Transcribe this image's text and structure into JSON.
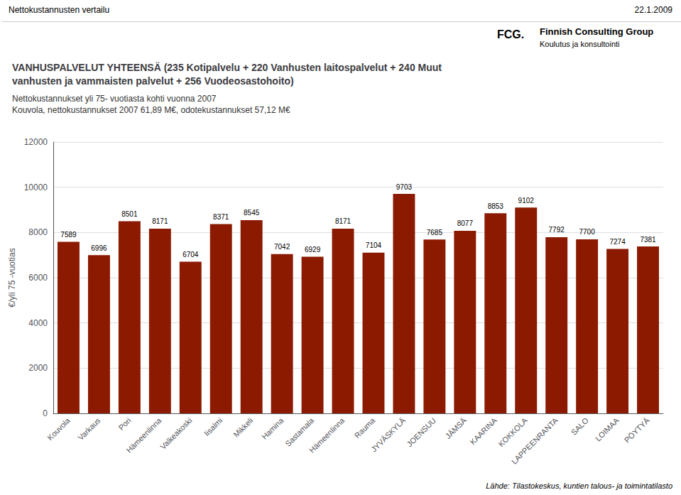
{
  "chart_data": {
    "type": "bar",
    "title": "VANHUSPALVELUT YHTEENSÄ (235 Kotipalvelu + 220 Vanhusten laitospalvelut + 240 Muut\nvanhusten ja vammaisten palvelut + 256 Vuodeosastohoito)",
    "subtitle": "Nettokustannukset yli 75- vuotiasta kohti vuonna 2007\nKouvola, nettokustannukset 2007 61,89 M€, odotekustannukset 57,12 M€",
    "ylabel": "€/yli 75 -vuotias",
    "annotations": [
      "Nettokustannusten vertailu",
      "22.1.2009",
      "FCG.",
      "Finnish Consulting Group",
      "Koulutus ja konsultointi",
      "Lähde: Tilastokeskus, kuntien talous- ja toimintatilasto"
    ],
    "categories": [
      "Kouvola",
      "Varkaus",
      "Pori",
      "Hämeenlinna",
      "Valkeakoski",
      "Iisalmi",
      "Mikkeli",
      "Hamina",
      "Sastamala",
      "Hämeenlinna",
      "Rauma",
      "JYVÄSKYLÄ",
      "JOENSUU",
      "JÄMSÄ",
      "KAARINA",
      "KOKKOLA",
      "LAPPEENRANTA",
      "SALO",
      "LOIMAA",
      "PÖYTYÄ"
    ],
    "values": [
      7589,
      6996,
      8501,
      8171,
      6704,
      8371,
      8545,
      7042,
      6929,
      8171,
      7104,
      9703,
      7685,
      8077,
      8853,
      9102,
      7792,
      7700,
      7274,
      7381
    ],
    "color": "#8B1A00",
    "ylim": [
      0,
      12000
    ],
    "yticks": [
      0,
      2000,
      4000,
      6000,
      8000,
      10000,
      12000
    ],
    "grid": true,
    "data_labels": true
  }
}
